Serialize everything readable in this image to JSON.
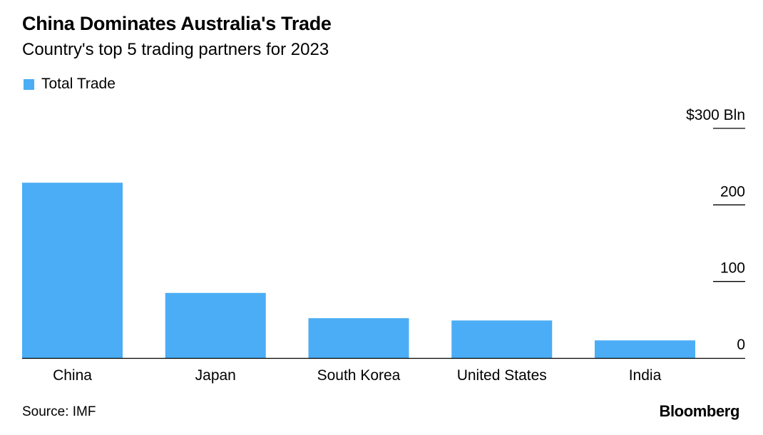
{
  "header": {
    "title": "China Dominates Australia's Trade",
    "subtitle": "Country's top 5 trading partners for 2023"
  },
  "legend": {
    "items": [
      {
        "label": "Total Trade",
        "color": "#4badf5"
      }
    ]
  },
  "footer": {
    "source": "Source: IMF",
    "logo_text": "Bloomberg"
  },
  "chart_data": {
    "type": "bar",
    "categories": [
      "China",
      "Japan",
      "South Korea",
      "United States",
      "India"
    ],
    "series": [
      {
        "name": "Total Trade",
        "values": [
          229,
          85,
          52,
          49,
          23
        ],
        "color": "#4badf5"
      }
    ],
    "ylim": [
      0,
      300
    ],
    "yticks": [
      0,
      100,
      200,
      300
    ],
    "ytick_labels": [
      "0",
      "100",
      "200",
      "$300 Bln"
    ],
    "y_axis_side": "right",
    "grid": false,
    "legend_position": "top-left"
  }
}
